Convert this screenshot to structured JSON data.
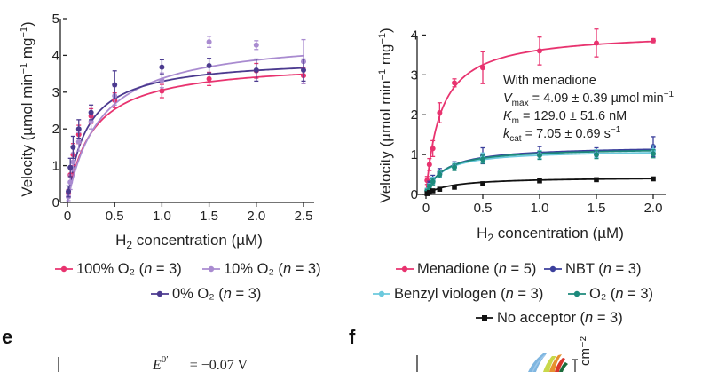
{
  "colors": {
    "pink": "#e8336f",
    "lavender": "#a98bd0",
    "indigo": "#4b3a8f",
    "navy": "#3b3f9c",
    "lightblue": "#6cc9dd",
    "teal": "#1d8a7c",
    "black": "#111111"
  },
  "chart_data": [
    {
      "type": "line",
      "title": "",
      "xlabel": "H₂ concentration (µM)",
      "ylabel": "Velocity (µmol min⁻¹ mg⁻¹)",
      "xlim": [
        0,
        2.5
      ],
      "ylim": [
        0,
        5
      ],
      "xticks": [
        0,
        0.5,
        1.0,
        1.5,
        2.0,
        2.5
      ],
      "xtick_labels": [
        "0",
        "0.5",
        "1.0",
        "1.5",
        "2.0",
        "2.5"
      ],
      "yticks": [
        0,
        1,
        2,
        3,
        4,
        5
      ],
      "ytick_labels": [
        "0",
        "1",
        "2",
        "3",
        "4",
        "5"
      ],
      "series": [
        {
          "name": "100% O₂ (n = 3)",
          "color": "pink",
          "vmax": 3.85,
          "km": 0.26,
          "x": [
            0.01,
            0.03,
            0.06,
            0.12,
            0.25,
            0.5,
            1.0,
            1.5,
            2.0,
            2.5
          ],
          "y": [
            0.25,
            0.75,
            1.3,
            1.85,
            2.35,
            2.78,
            3.03,
            3.36,
            3.58,
            3.45
          ],
          "err": [
            0.1,
            0.2,
            0.3,
            0.25,
            0.2,
            0.2,
            0.18,
            0.18,
            0.2,
            0.22
          ]
        },
        {
          "name": "10% O₂ (n = 3)",
          "color": "lavender",
          "vmax": 4.55,
          "km": 0.35,
          "x": [
            0.01,
            0.03,
            0.06,
            0.12,
            0.25,
            0.5,
            1.0,
            1.5,
            2.0,
            2.5
          ],
          "y": [
            0.15,
            0.55,
            1.1,
            1.65,
            2.2,
            2.9,
            3.32,
            4.37,
            4.28,
            3.83
          ],
          "err": [
            0.1,
            0.2,
            0.25,
            0.25,
            0.2,
            0.25,
            0.2,
            0.15,
            0.12,
            0.6
          ]
        },
        {
          "name": "0% O₂ (n = 3)",
          "color": "indigo",
          "vmax": 3.95,
          "km": 0.2,
          "x": [
            0.01,
            0.03,
            0.06,
            0.12,
            0.25,
            0.5,
            1.0,
            1.5,
            2.0,
            2.5
          ],
          "y": [
            0.3,
            0.95,
            1.5,
            2.0,
            2.45,
            3.2,
            3.68,
            3.72,
            3.6,
            3.6
          ],
          "err": [
            0.15,
            0.25,
            0.3,
            0.25,
            0.2,
            0.38,
            0.2,
            0.2,
            0.3,
            0.3
          ]
        }
      ],
      "legend": {
        "row1": [
          "100% O₂ (n = 3)",
          "10% O₂ (n = 3)"
        ],
        "row2": [
          "0% O₂ (n = 3)"
        ]
      }
    },
    {
      "type": "line",
      "title": "",
      "xlabel": "H₂ concentration (µM)",
      "ylabel": "Velocity (µmol min⁻¹ mg⁻¹)",
      "xlim": [
        0,
        2.0
      ],
      "ylim": [
        0,
        4.3
      ],
      "xticks": [
        0,
        0.5,
        1.0,
        1.5,
        2.0
      ],
      "xtick_labels": [
        "0",
        "0.5",
        "1.0",
        "1.5",
        "2.0"
      ],
      "yticks": [
        0,
        1,
        2,
        3,
        4
      ],
      "ytick_labels": [
        "0",
        "1",
        "2",
        "3",
        "4"
      ],
      "annotation": {
        "line1": "With menadione",
        "line2": "Vmax = 4.09 ± 0.39 µmol min⁻¹",
        "line3": "Km = 129.0 ± 51.6 nM",
        "line4": "kcat = 7.05 ± 0.69 s⁻¹"
      },
      "series": [
        {
          "name": "Menadione (n = 5)",
          "color": "pink",
          "vmax": 4.09,
          "km": 0.129,
          "x": [
            0.01,
            0.03,
            0.06,
            0.12,
            0.25,
            0.5,
            1.0,
            1.5,
            2.0
          ],
          "y": [
            0.35,
            0.75,
            1.15,
            2.05,
            2.8,
            3.18,
            3.6,
            3.8,
            3.86
          ],
          "err": [
            0.1,
            0.15,
            0.2,
            0.25,
            0.1,
            0.4,
            0.35,
            0.35,
            0.05
          ]
        },
        {
          "name": "NBT (n = 3)",
          "color": "navy",
          "vmax": 1.22,
          "km": 0.16,
          "x": [
            0.01,
            0.03,
            0.06,
            0.12,
            0.25,
            0.5,
            1.0,
            1.5,
            2.0
          ],
          "y": [
            0.1,
            0.25,
            0.38,
            0.55,
            0.72,
            0.97,
            1.05,
            1.05,
            1.2
          ],
          "err": [
            0.05,
            0.08,
            0.1,
            0.1,
            0.1,
            0.2,
            0.15,
            0.12,
            0.25
          ]
        },
        {
          "name": "Benzyl viologen (n = 3)",
          "color": "lightblue",
          "vmax": 1.12,
          "km": 0.14,
          "x": [
            0.01,
            0.03,
            0.06,
            0.12,
            0.25,
            0.5,
            1.0,
            1.5,
            2.0
          ],
          "y": [
            0.1,
            0.22,
            0.35,
            0.52,
            0.7,
            0.92,
            1.0,
            1.02,
            1.1
          ],
          "err": [
            0.05,
            0.05,
            0.08,
            0.08,
            0.08,
            0.12,
            0.1,
            0.1,
            0.12
          ]
        },
        {
          "name": "O₂ (n = 3)",
          "color": "teal",
          "vmax": 1.18,
          "km": 0.15,
          "x": [
            0.01,
            0.03,
            0.06,
            0.12,
            0.25,
            0.5,
            1.0,
            1.5,
            2.0
          ],
          "y": [
            0.08,
            0.2,
            0.32,
            0.5,
            0.68,
            0.88,
            0.98,
            1.0,
            1.02
          ],
          "err": [
            0.05,
            0.05,
            0.08,
            0.08,
            0.08,
            0.1,
            0.1,
            0.1,
            0.1
          ]
        },
        {
          "name": "No acceptor (n = 3)",
          "color": "black",
          "vmax": 0.44,
          "km": 0.22,
          "x": [
            0.01,
            0.03,
            0.06,
            0.12,
            0.25,
            0.5,
            1.0,
            1.5,
            2.0
          ],
          "y": [
            0.02,
            0.05,
            0.09,
            0.13,
            0.18,
            0.27,
            0.34,
            0.37,
            0.39
          ],
          "err": [
            0.01,
            0.01,
            0.02,
            0.02,
            0.02,
            0.03,
            0.03,
            0.03,
            0.03
          ]
        }
      ],
      "legend": {
        "row1": [
          "Menadione (n = 5)",
          "NBT (n = 3)"
        ],
        "row2": [
          "Benzyl viologen (n = 3)",
          "O₂ (n = 3)"
        ],
        "row3": [
          "No acceptor (n = 3)"
        ]
      }
    }
  ],
  "panel_labels": {
    "e": "e",
    "f": "f"
  },
  "fragments": {
    "e_equation_lhs": "E",
    "e_equation_sup": "0′",
    "e_equation_rhs": "= −0.07 V"
  }
}
